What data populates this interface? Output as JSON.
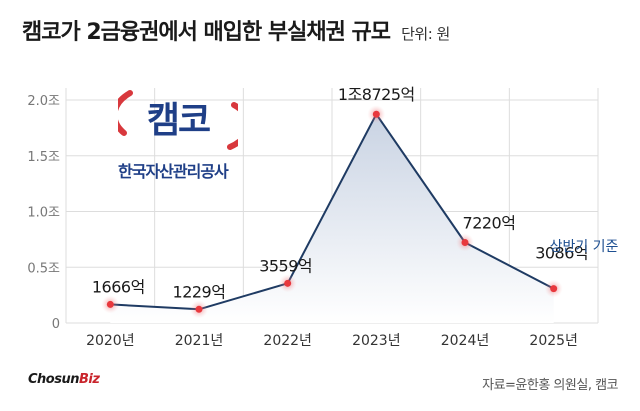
{
  "title": "캠코가 2금융권에서 매입한 부실채권 규모",
  "unit_label": "단위: 원",
  "logo": {
    "mark_text": "캠코",
    "org_name": "한국자산관리공사"
  },
  "brand": {
    "part1": "Chosun",
    "part2": "Biz"
  },
  "source": "자료=윤한홍 의원실, 캠코",
  "annotation": "상반기 기준",
  "chart_data": {
    "type": "area",
    "categories": [
      "2020년",
      "2021년",
      "2022년",
      "2023년",
      "2024년",
      "2025년"
    ],
    "values": [
      1666,
      1229,
      3559,
      18725,
      7220,
      3086
    ],
    "value_unit": "억",
    "data_labels": [
      "1666억",
      "1229억",
      "3559억",
      "1조8725억",
      "7220억",
      "3086억"
    ],
    "y_ticks": [
      {
        "value": 0,
        "label": "0"
      },
      {
        "value": 5000,
        "label": "0.5조"
      },
      {
        "value": 10000,
        "label": "1.0조"
      },
      {
        "value": 15000,
        "label": "1.5조"
      },
      {
        "value": 20000,
        "label": "2.0조"
      }
    ],
    "ylim": [
      0,
      20000
    ],
    "grid": true,
    "colors": {
      "line": "#1f3b63",
      "area_top": "#c9d3e3",
      "area_bottom": "#ffffff",
      "point": "#e8383d",
      "point_glow": "#f6b3b5",
      "grid": "#dddddd",
      "annotation": "#1d4f91"
    }
  }
}
